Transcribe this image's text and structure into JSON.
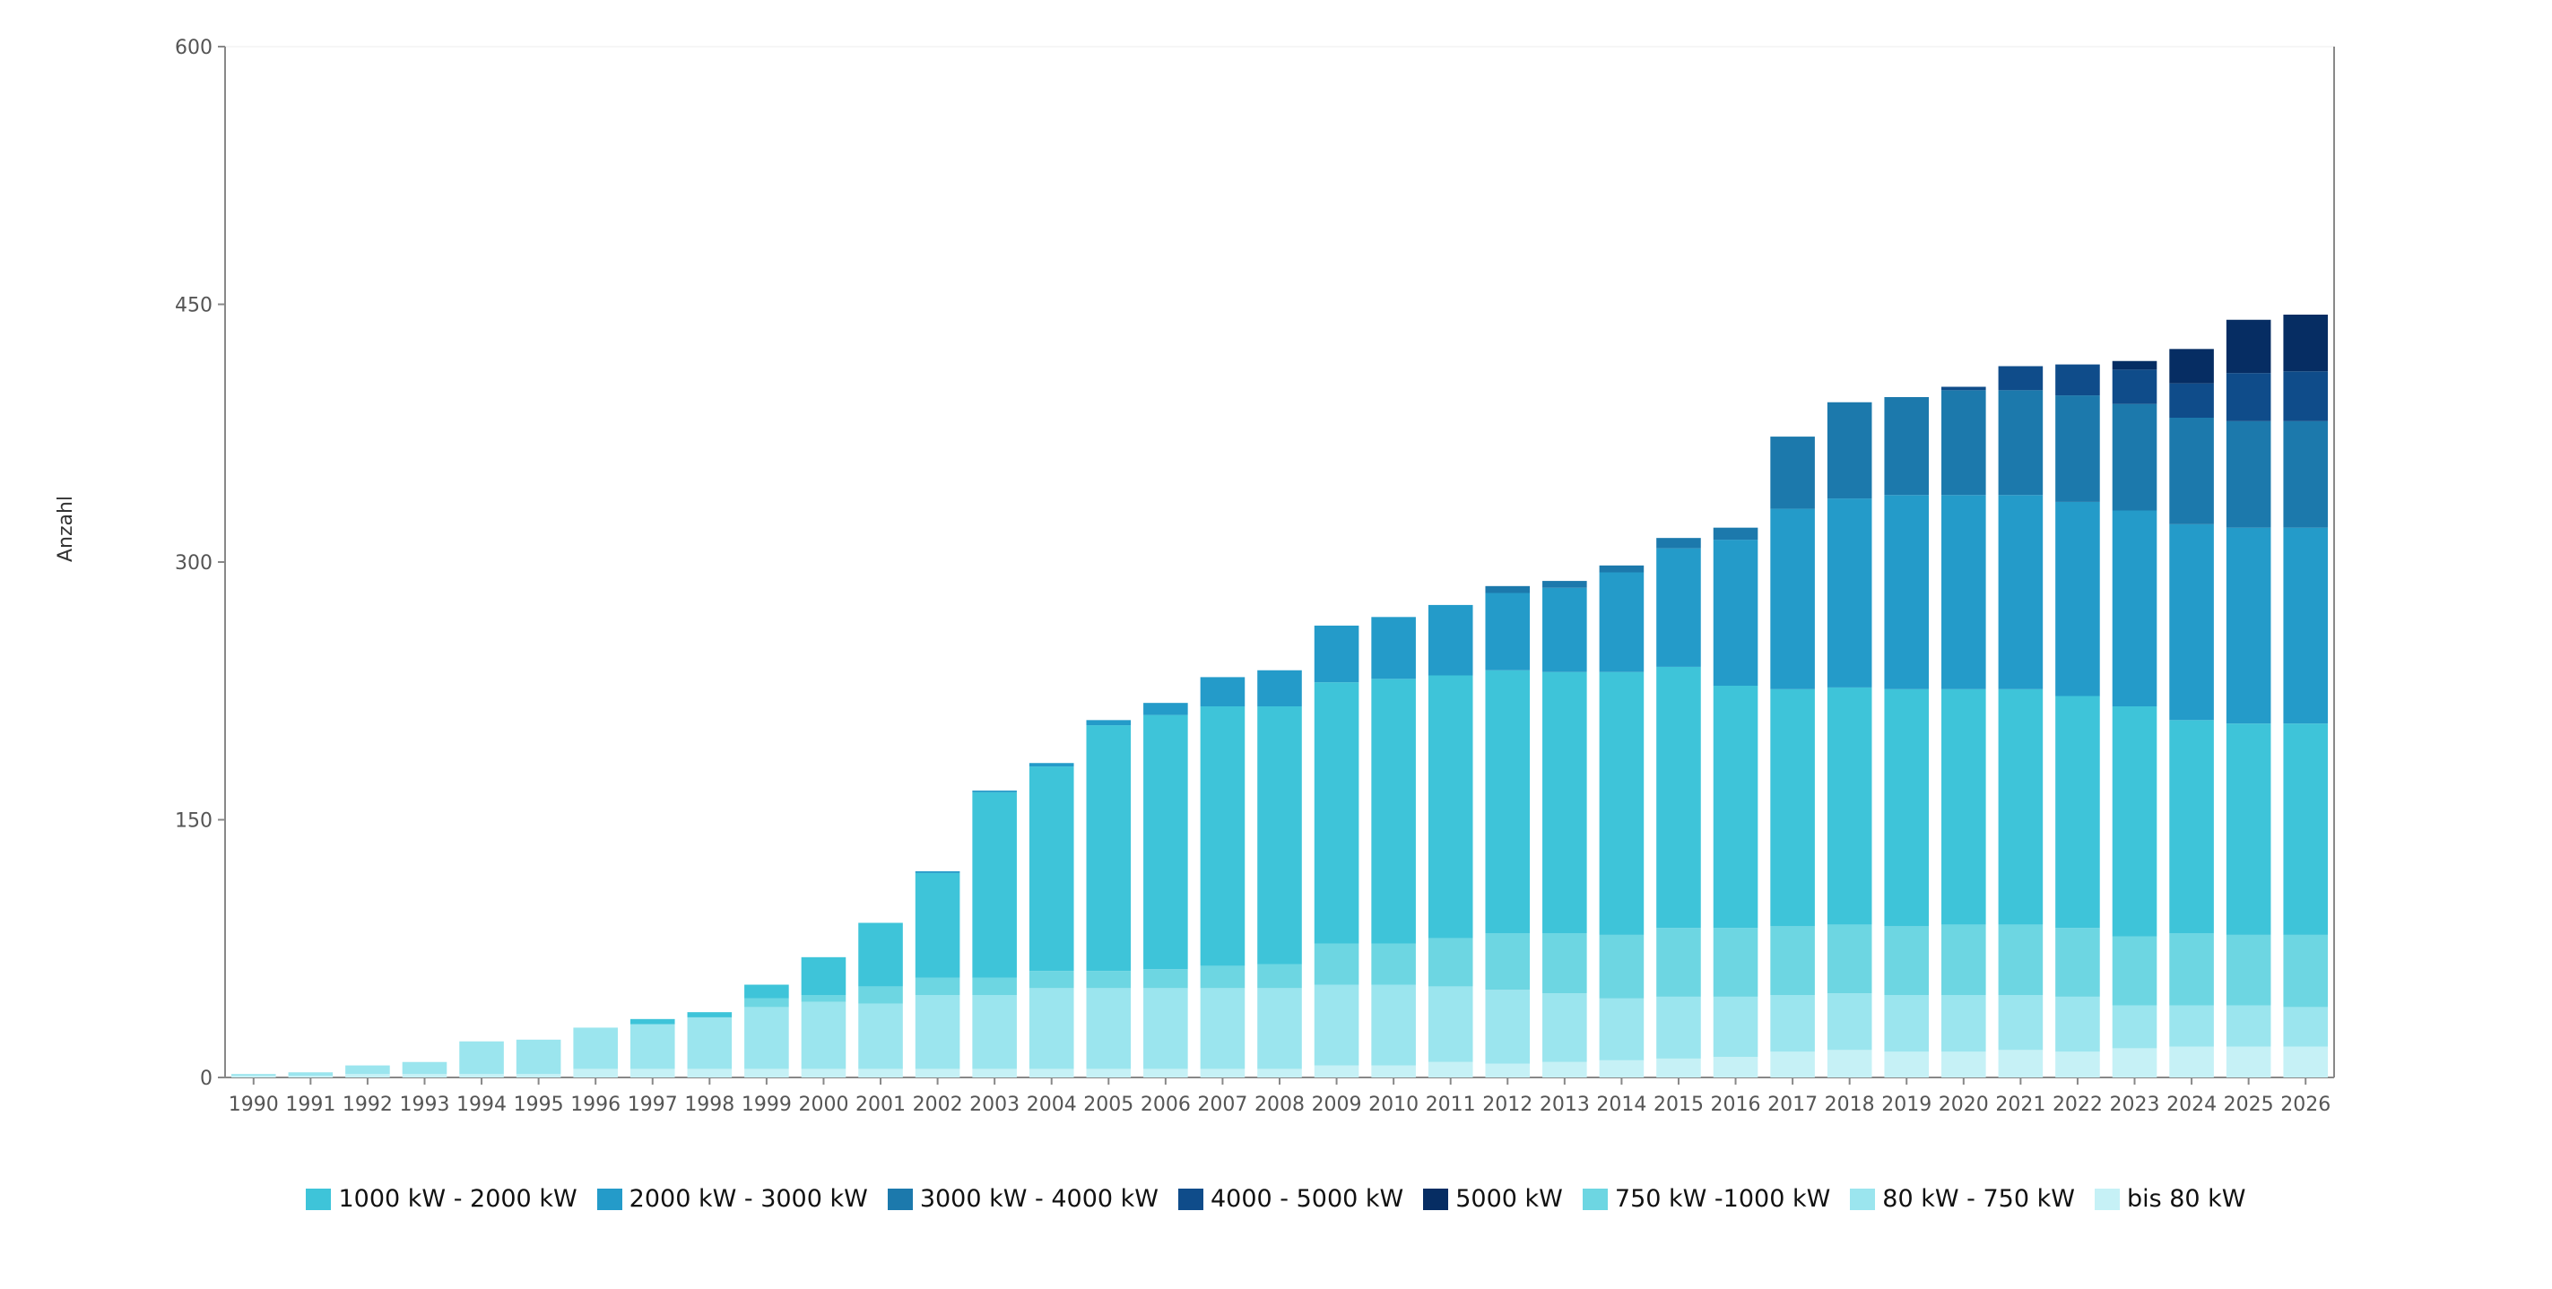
{
  "chart_data": {
    "type": "bar",
    "stacked": true,
    "ylabel": "Anzahl",
    "xlabel": "",
    "ylim": [
      0,
      600
    ],
    "yticks": [
      0,
      150,
      300,
      450,
      600
    ],
    "grid": false,
    "legend_position": "bottom",
    "categories": [
      "1990",
      "1991",
      "1992",
      "1993",
      "1994",
      "1995",
      "1996",
      "1997",
      "1998",
      "1999",
      "2000",
      "2001",
      "2002",
      "2003",
      "2004",
      "2005",
      "2006",
      "2007",
      "2008",
      "2009",
      "2010",
      "2011",
      "2012",
      "2013",
      "2014",
      "2015",
      "2016",
      "2017",
      "2018",
      "2019",
      "2020",
      "2021",
      "2022",
      "2023",
      "2024",
      "2025",
      "2026"
    ],
    "series": [
      {
        "name": "bis 80 kW",
        "color": "#c6f1f6",
        "values": [
          1,
          1,
          2,
          2,
          2,
          2,
          5,
          5,
          5,
          5,
          5,
          5,
          5,
          5,
          5,
          5,
          5,
          5,
          5,
          7,
          7,
          9,
          8,
          9,
          10,
          11,
          12,
          15,
          16,
          15,
          15,
          16,
          15,
          17,
          18,
          18,
          18
        ]
      },
      {
        "name": "80 kW - 750 kW",
        "color": "#9be5ee",
        "values": [
          1,
          2,
          5,
          7,
          19,
          20,
          24,
          26,
          30,
          36,
          39,
          38,
          43,
          43,
          47,
          47,
          47,
          47,
          47,
          47,
          47,
          44,
          43,
          40,
          36,
          36,
          35,
          33,
          33,
          33,
          33,
          32,
          32,
          25,
          24,
          24,
          23
        ]
      },
      {
        "name": "750 kW -1000 kW",
        "color": "#6dd6e2",
        "values": [
          0,
          0,
          0,
          0,
          0,
          0,
          0,
          0,
          0,
          5,
          4,
          10,
          10,
          10,
          10,
          10,
          11,
          13,
          14,
          24,
          24,
          28,
          33,
          35,
          37,
          40,
          40,
          40,
          40,
          40,
          41,
          41,
          40,
          40,
          42,
          41,
          42
        ]
      },
      {
        "name": "1000 kW - 2000 kW",
        "color": "#3ec4d9",
        "values": [
          0,
          0,
          0,
          0,
          0,
          0,
          0,
          3,
          3,
          8,
          22,
          37,
          61,
          108,
          119,
          143,
          148,
          151,
          150,
          152,
          154,
          153,
          153,
          152,
          153,
          152,
          141,
          138,
          138,
          138,
          137,
          137,
          135,
          134,
          124,
          123,
          123
        ]
      },
      {
        "name": "2000 kW - 3000 kW",
        "color": "#249bc9",
        "values": [
          0,
          0,
          0,
          0,
          0,
          0,
          0,
          0,
          0,
          0,
          0,
          0,
          1,
          1,
          2,
          3,
          7,
          17,
          21,
          33,
          36,
          41,
          45,
          49,
          58,
          69,
          85,
          105,
          110,
          113,
          113,
          113,
          113,
          114,
          114,
          114,
          114
        ]
      },
      {
        "name": "3000 kW - 4000 kW",
        "color": "#1c79ac",
        "values": [
          0,
          0,
          0,
          0,
          0,
          0,
          0,
          0,
          0,
          0,
          0,
          0,
          0,
          0,
          0,
          0,
          0,
          0,
          0,
          0,
          0,
          0,
          4,
          4,
          4,
          6,
          7,
          42,
          56,
          57,
          61,
          61,
          62,
          62,
          62,
          62,
          62
        ]
      },
      {
        "name": "4000 - 5000 kW",
        "color": "#0f4c8a",
        "values": [
          0,
          0,
          0,
          0,
          0,
          0,
          0,
          0,
          0,
          0,
          0,
          0,
          0,
          0,
          0,
          0,
          0,
          0,
          0,
          0,
          0,
          0,
          0,
          0,
          0,
          0,
          0,
          0,
          0,
          0,
          2,
          14,
          18,
          20,
          20,
          28,
          29
        ]
      },
      {
        "name": "5000 kW",
        "color": "#062d63",
        "values": [
          0,
          0,
          0,
          0,
          0,
          0,
          0,
          0,
          0,
          0,
          0,
          0,
          0,
          0,
          0,
          0,
          0,
          0,
          0,
          0,
          0,
          0,
          0,
          0,
          0,
          0,
          0,
          0,
          0,
          0,
          0,
          0,
          0,
          5,
          20,
          31,
          33
        ]
      }
    ],
    "legend_order": [
      "1000 kW - 2000 kW",
      "2000 kW - 3000 kW",
      "3000 kW - 4000 kW",
      "4000 - 5000 kW",
      "5000 kW",
      "750 kW -1000 kW",
      "80 kW - 750 kW",
      "bis 80 kW"
    ]
  }
}
